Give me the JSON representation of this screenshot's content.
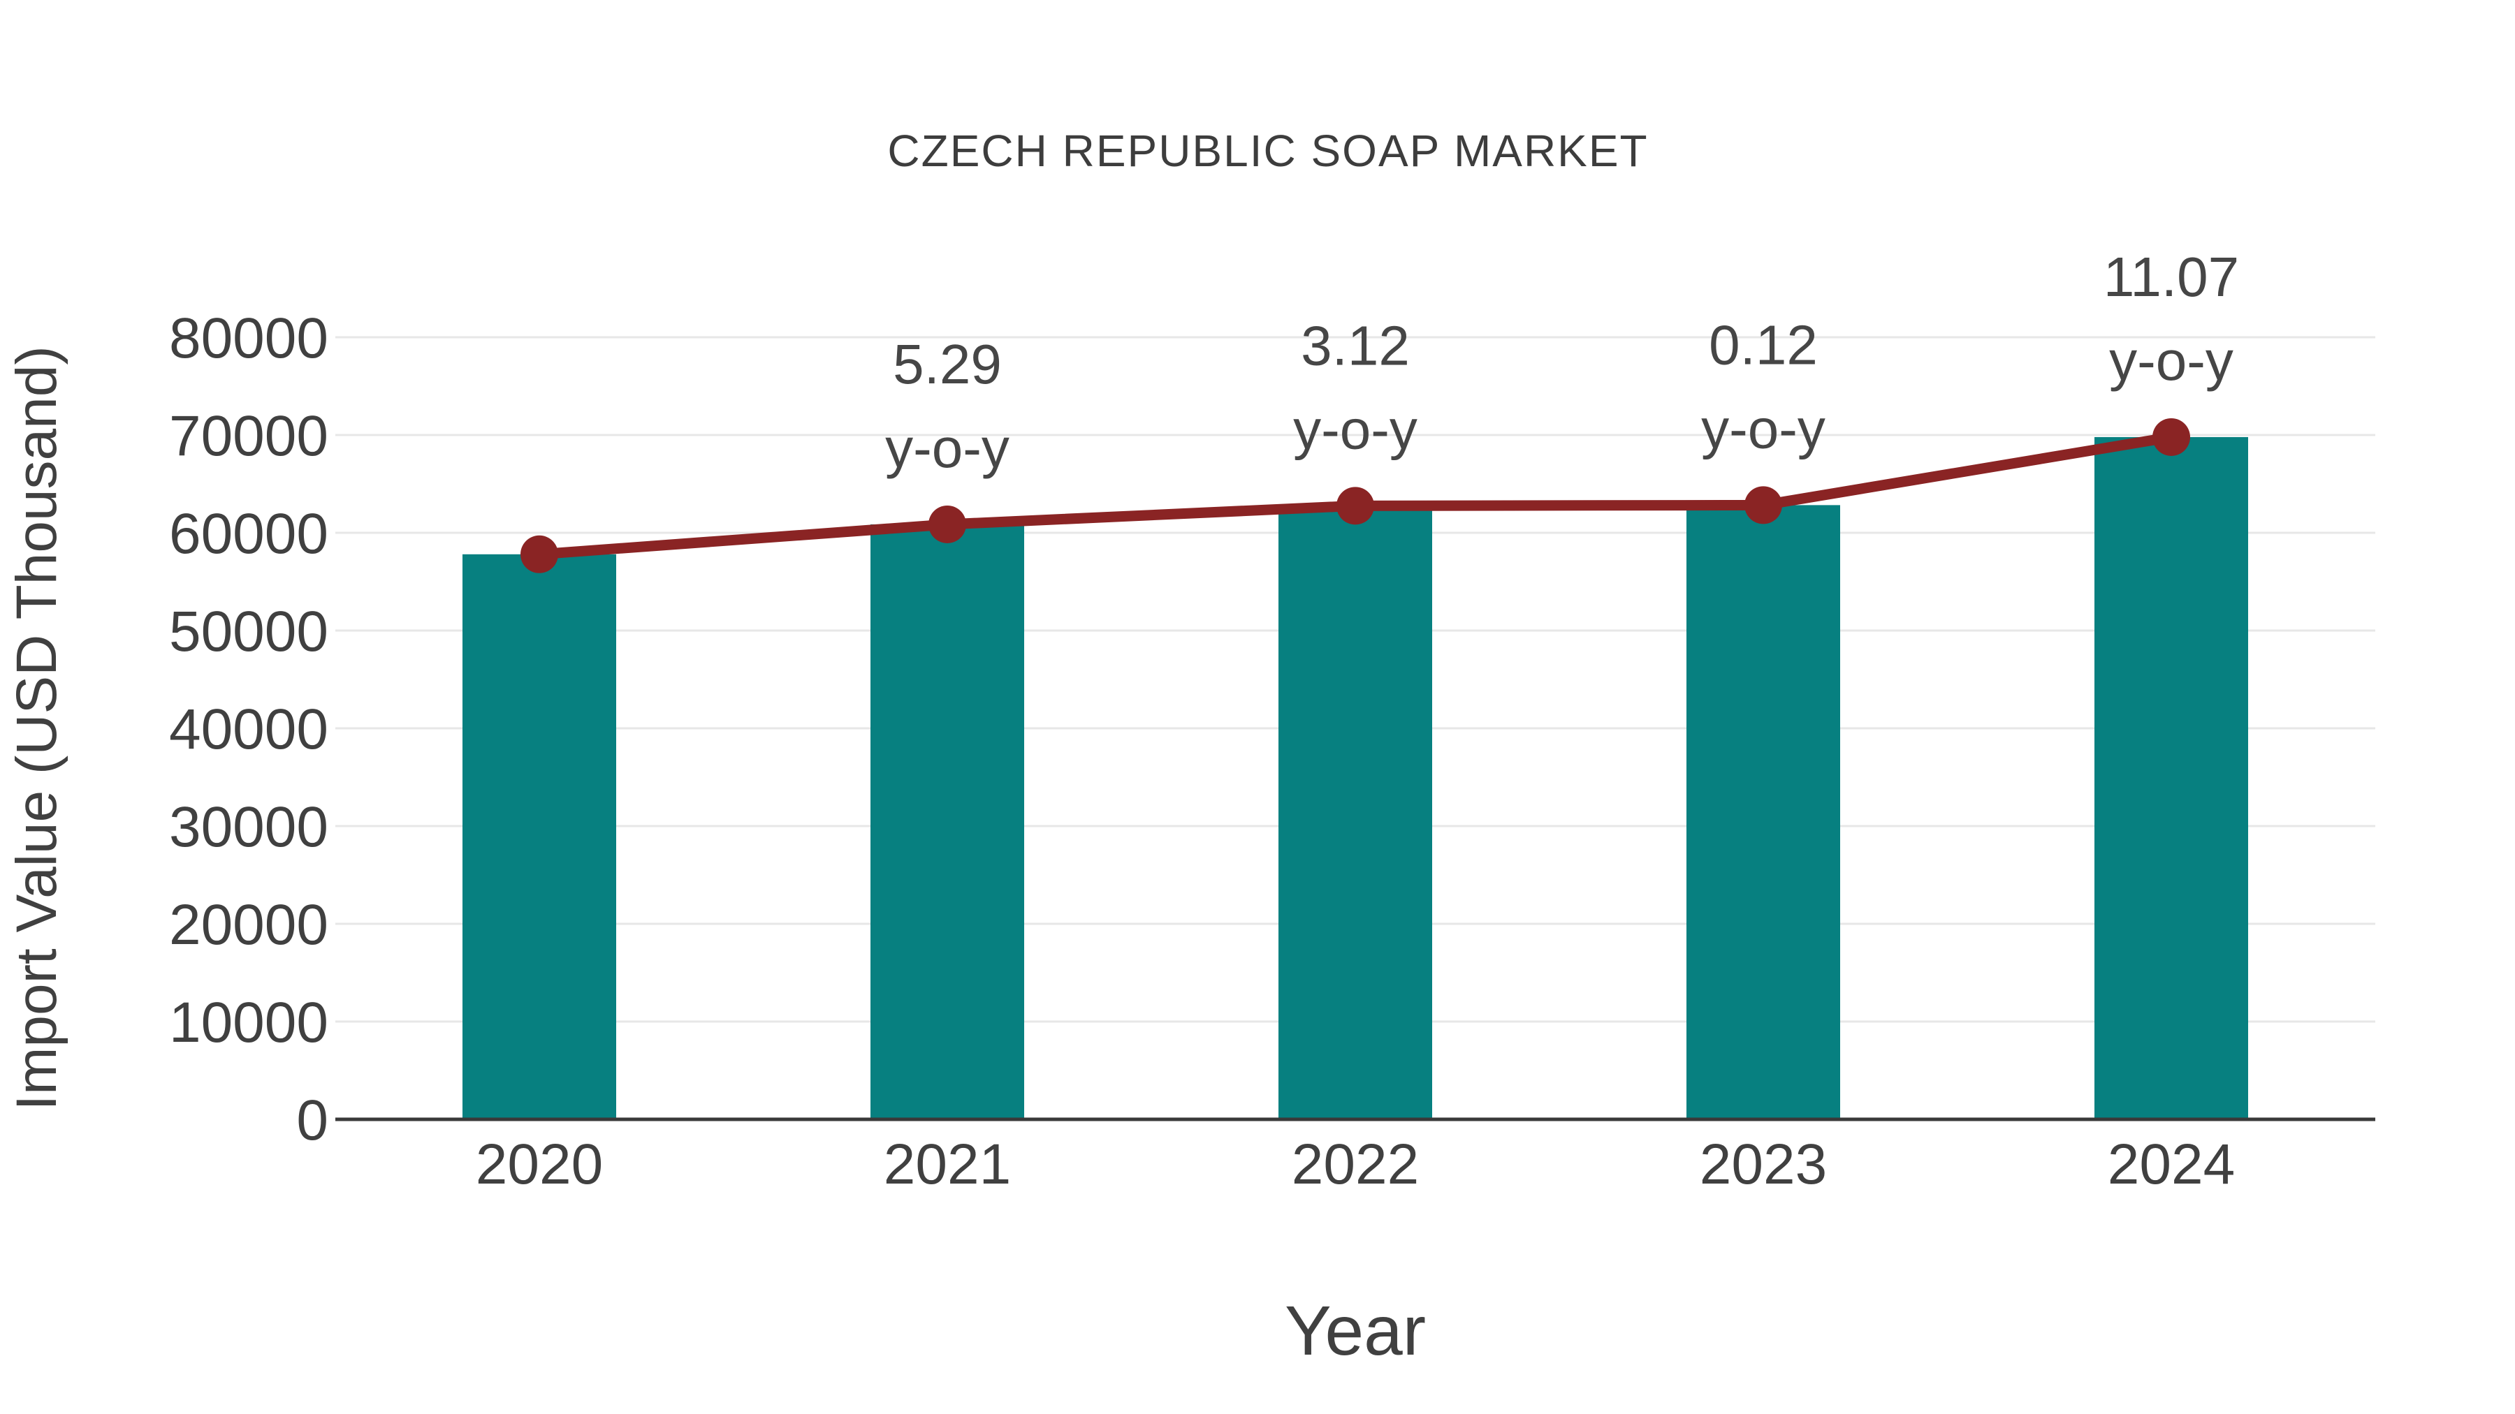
{
  "chart_data": {
    "type": "bar",
    "title": "CZECH REPUBLIC SOAP MARKET",
    "xlabel": "Year",
    "ylabel": "Import Value (USD Thousand)",
    "categories": [
      "2020",
      "2021",
      "2022",
      "2023",
      "2024"
    ],
    "series": [
      {
        "name": "import-value-bars",
        "type": "bar",
        "values": [
          57800,
          60860,
          62760,
          62830,
          69790
        ]
      },
      {
        "name": "import-value-trend",
        "type": "line",
        "values": [
          57800,
          60860,
          62760,
          62830,
          69790
        ]
      }
    ],
    "annotations": [
      {
        "category": "2021",
        "value": "5.29",
        "suffix": "y-o-y"
      },
      {
        "category": "2022",
        "value": "3.12",
        "suffix": "y-o-y"
      },
      {
        "category": "2023",
        "value": "0.12",
        "suffix": "y-o-y"
      },
      {
        "category": "2024",
        "value": "11.07",
        "suffix": "y-o-y"
      }
    ],
    "ylim": [
      0,
      80000
    ],
    "ytick_step": 10000,
    "ytick_labels": [
      "0",
      "10000",
      "20000",
      "30000",
      "40000",
      "50000",
      "60000",
      "70000",
      "80000"
    ],
    "grid": "horizontal",
    "legend": "none",
    "colors": {
      "bar": "#078080",
      "line": "#8a2424",
      "marker": "#8a2424",
      "gridline": "#e7e7e7",
      "axis_line": "#3a3a3a",
      "tick_text": "#404040",
      "title_text": "#3d3d3d",
      "annotation_text": "#464646"
    }
  }
}
